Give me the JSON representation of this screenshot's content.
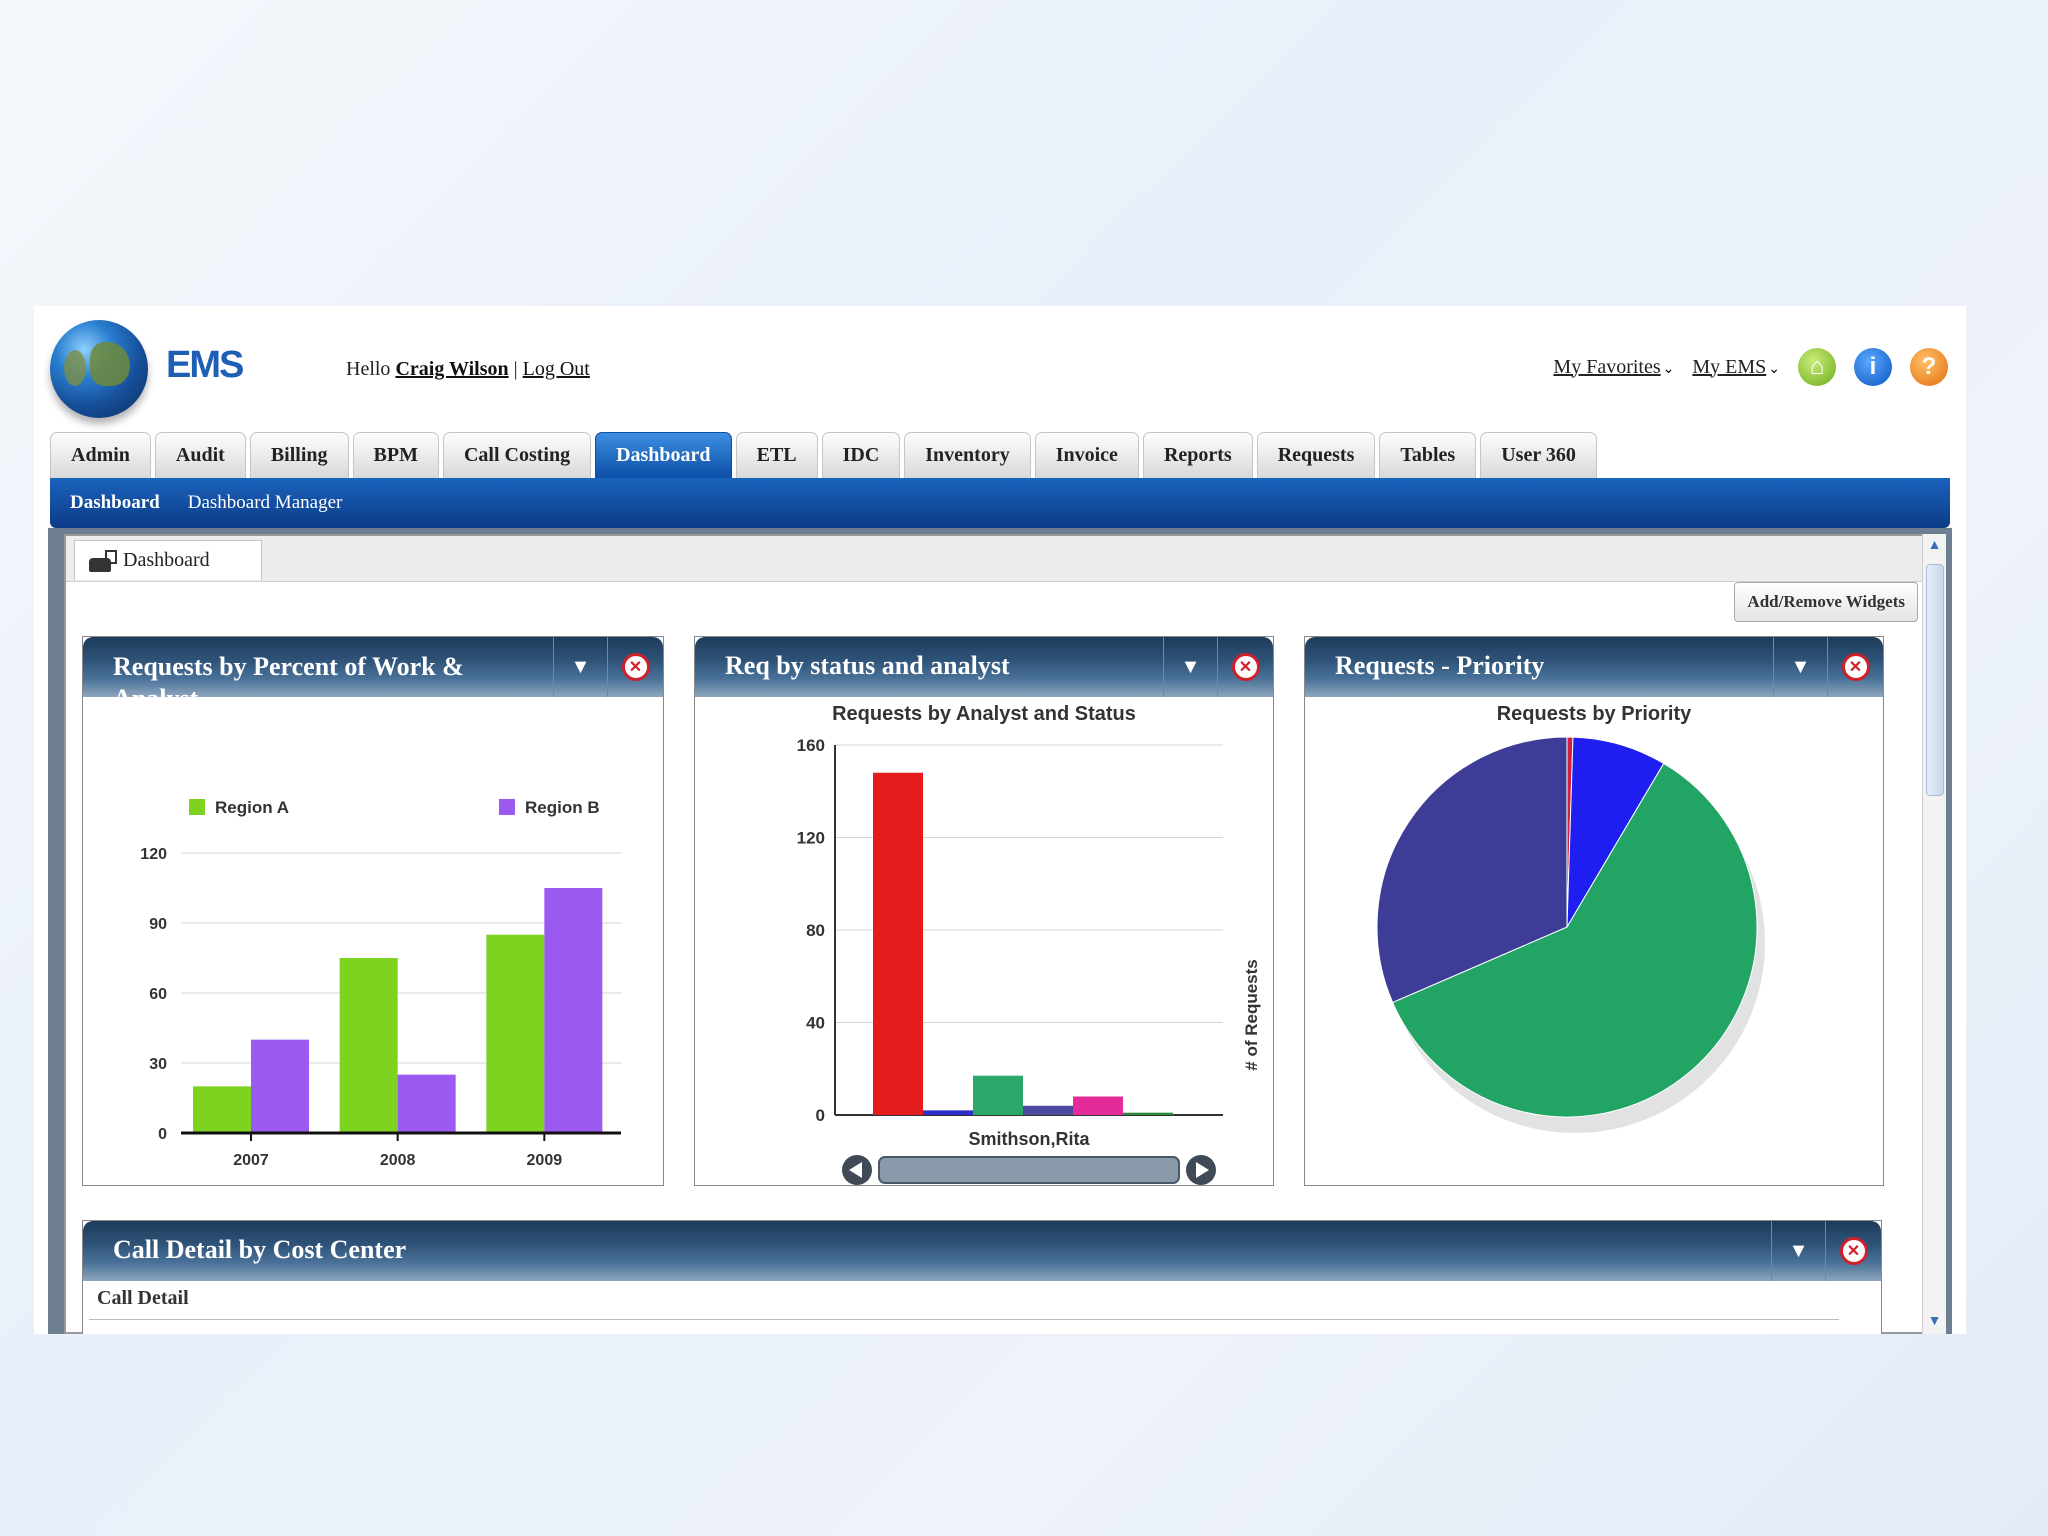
{
  "header": {
    "logo_text": "EMS",
    "greeting_prefix": "Hello",
    "user_name": "Craig Wilson",
    "separator": "|",
    "logout": "Log Out",
    "my_favorites": "My Favorites",
    "my_ems": "My EMS",
    "help_glyph": "?",
    "info_glyph": "i"
  },
  "tabs": [
    "Admin",
    "Audit",
    "Billing",
    "BPM",
    "Call Costing",
    "Dashboard",
    "ETL",
    "IDC",
    "Inventory",
    "Invoice",
    "Reports",
    "Requests",
    "Tables",
    "User 360"
  ],
  "active_tab": "Dashboard",
  "subnav": {
    "current": "Dashboard",
    "other": "Dashboard Manager"
  },
  "content_tab": "Dashboard",
  "add_remove_button": "Add/Remove Widgets",
  "widgets": {
    "w1": {
      "title": "Requests by Percent of Work & Analyst"
    },
    "w2": {
      "title": "Req by status and analyst"
    },
    "w3": {
      "title": "Requests - Priority"
    },
    "w4": {
      "title": "Call Detail by Cost Center",
      "sub_label": "Call Detail"
    }
  },
  "icons": {
    "dropdown": "chevron-down-icon",
    "close": "close-icon",
    "home": "home-icon",
    "info": "info-icon",
    "help": "help-icon"
  },
  "colors": {
    "brand_blue": "#1e5eb5",
    "tab_active": "#0c4fa8",
    "region_a": "#7ed321",
    "region_b": "#9b59f0"
  },
  "chart_data": [
    {
      "type": "bar",
      "categories": [
        "2007",
        "2008",
        "2009"
      ],
      "series": [
        {
          "name": "Region A",
          "values": [
            20,
            75,
            85
          ],
          "color": "#7ed321"
        },
        {
          "name": "Region B",
          "values": [
            40,
            25,
            105
          ],
          "color": "#9b59f0"
        }
      ],
      "yticks": [
        0,
        30,
        60,
        90,
        120
      ],
      "ylim": [
        0,
        120
      ],
      "legend": "top"
    },
    {
      "type": "bar",
      "title": "Requests by Analyst and Status",
      "xlabel": "Smithson,Rita",
      "ylabel": "# of Requests",
      "yticks": [
        0,
        40,
        80,
        120,
        160
      ],
      "ylim": [
        0,
        160
      ],
      "values": [
        148,
        2,
        17,
        4,
        8,
        1
      ],
      "colors": [
        "#e51c1c",
        "#2b2ec9",
        "#2aa86a",
        "#4b4b9e",
        "#e52a9a",
        "#2e8b3e"
      ],
      "grid": true
    },
    {
      "type": "pie",
      "title": "Requests by Priority",
      "slices": [
        {
          "value": 0.5,
          "color": "#d02040"
        },
        {
          "value": 8,
          "color": "#1e1ef0"
        },
        {
          "value": 60,
          "color": "#22a564"
        },
        {
          "value": 31.5,
          "color": "#3d3c96"
        }
      ]
    }
  ]
}
